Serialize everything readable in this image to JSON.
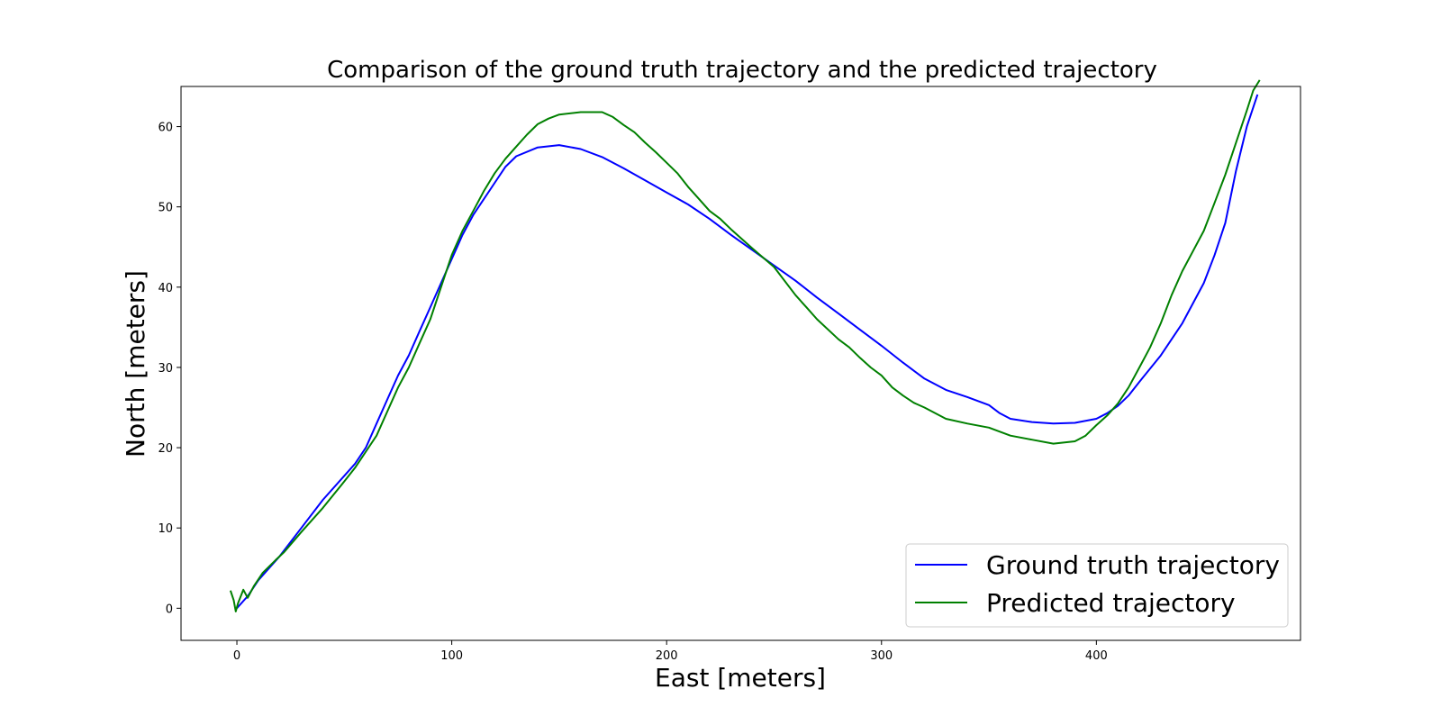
{
  "chart_data": {
    "type": "line",
    "title": "Comparison of the ground truth trajectory and the predicted trajectory",
    "xlabel": "East [meters]",
    "ylabel": "North [meters]",
    "xlim": [
      -26,
      495
    ],
    "ylim": [
      -4,
      65
    ],
    "x_ticks": [
      0,
      100,
      200,
      300,
      400
    ],
    "y_ticks": [
      0,
      10,
      20,
      30,
      40,
      50,
      60
    ],
    "grid": false,
    "legend_position": "lower right",
    "series": [
      {
        "name": "Ground truth trajectory",
        "color": "#0000ff",
        "points": [
          [
            0,
            0
          ],
          [
            5,
            1.5
          ],
          [
            10,
            3.5
          ],
          [
            20,
            6.5
          ],
          [
            30,
            10
          ],
          [
            40,
            13.5
          ],
          [
            50,
            16.5
          ],
          [
            55,
            18
          ],
          [
            60,
            20
          ],
          [
            65,
            23
          ],
          [
            70,
            26
          ],
          [
            75,
            29
          ],
          [
            80,
            31.5
          ],
          [
            85,
            34.5
          ],
          [
            90,
            37.5
          ],
          [
            95,
            40.5
          ],
          [
            100,
            43.5
          ],
          [
            105,
            46.5
          ],
          [
            110,
            49
          ],
          [
            115,
            51
          ],
          [
            120,
            53
          ],
          [
            125,
            55
          ],
          [
            130,
            56.3
          ],
          [
            140,
            57.4
          ],
          [
            150,
            57.7
          ],
          [
            160,
            57.2
          ],
          [
            170,
            56.2
          ],
          [
            180,
            54.8
          ],
          [
            190,
            53.3
          ],
          [
            200,
            51.8
          ],
          [
            210,
            50.3
          ],
          [
            220,
            48.5
          ],
          [
            230,
            46.5
          ],
          [
            240,
            44.6
          ],
          [
            250,
            42.7
          ],
          [
            260,
            40.8
          ],
          [
            270,
            38.7
          ],
          [
            280,
            36.7
          ],
          [
            290,
            34.7
          ],
          [
            300,
            32.7
          ],
          [
            310,
            30.6
          ],
          [
            320,
            28.6
          ],
          [
            330,
            27.2
          ],
          [
            340,
            26.3
          ],
          [
            350,
            25.3
          ],
          [
            355,
            24.3
          ],
          [
            360,
            23.6
          ],
          [
            370,
            23.2
          ],
          [
            380,
            23.0
          ],
          [
            390,
            23.1
          ],
          [
            400,
            23.6
          ],
          [
            405,
            24.3
          ],
          [
            410,
            25.2
          ],
          [
            415,
            26.5
          ],
          [
            420,
            28.2
          ],
          [
            430,
            31.5
          ],
          [
            440,
            35.5
          ],
          [
            450,
            40.5
          ],
          [
            455,
            44
          ],
          [
            460,
            48
          ],
          [
            465,
            54.5
          ],
          [
            470,
            60
          ],
          [
            475,
            64
          ]
        ]
      },
      {
        "name": "Predicted trajectory",
        "color": "#008000",
        "points": [
          [
            -3,
            2.2
          ],
          [
            -1.5,
            1.0
          ],
          [
            -0.5,
            -0.4
          ],
          [
            0.5,
            0.6
          ],
          [
            3,
            2.3
          ],
          [
            5,
            1.3
          ],
          [
            8,
            2.8
          ],
          [
            12,
            4.4
          ],
          [
            18,
            6
          ],
          [
            22,
            7
          ],
          [
            30,
            9.5
          ],
          [
            40,
            12.5
          ],
          [
            50,
            15.8
          ],
          [
            55,
            17.5
          ],
          [
            60,
            19.5
          ],
          [
            65,
            21.5
          ],
          [
            70,
            24.5
          ],
          [
            75,
            27.5
          ],
          [
            80,
            30
          ],
          [
            85,
            33
          ],
          [
            90,
            36
          ],
          [
            95,
            40
          ],
          [
            100,
            44
          ],
          [
            105,
            47
          ],
          [
            110,
            49.5
          ],
          [
            115,
            52
          ],
          [
            120,
            54.2
          ],
          [
            125,
            56
          ],
          [
            130,
            57.5
          ],
          [
            135,
            59
          ],
          [
            140,
            60.3
          ],
          [
            145,
            61
          ],
          [
            150,
            61.5
          ],
          [
            160,
            61.8
          ],
          [
            170,
            61.8
          ],
          [
            175,
            61.2
          ],
          [
            180,
            60.2
          ],
          [
            185,
            59.3
          ],
          [
            190,
            58
          ],
          [
            195,
            56.8
          ],
          [
            200,
            55.5
          ],
          [
            205,
            54.2
          ],
          [
            210,
            52.5
          ],
          [
            215,
            51
          ],
          [
            220,
            49.5
          ],
          [
            225,
            48.5
          ],
          [
            230,
            47.2
          ],
          [
            240,
            44.8
          ],
          [
            250,
            42.5
          ],
          [
            260,
            39
          ],
          [
            265,
            37.5
          ],
          [
            270,
            36
          ],
          [
            280,
            33.5
          ],
          [
            285,
            32.5
          ],
          [
            290,
            31.2
          ],
          [
            295,
            30
          ],
          [
            300,
            29
          ],
          [
            305,
            27.5
          ],
          [
            310,
            26.5
          ],
          [
            315,
            25.6
          ],
          [
            320,
            25
          ],
          [
            330,
            23.6
          ],
          [
            340,
            23
          ],
          [
            350,
            22.5
          ],
          [
            360,
            21.5
          ],
          [
            370,
            21
          ],
          [
            380,
            20.5
          ],
          [
            390,
            20.8
          ],
          [
            395,
            21.5
          ],
          [
            400,
            22.8
          ],
          [
            405,
            24
          ],
          [
            410,
            25.5
          ],
          [
            415,
            27.5
          ],
          [
            420,
            30
          ],
          [
            425,
            32.5
          ],
          [
            430,
            35.5
          ],
          [
            435,
            39
          ],
          [
            440,
            42
          ],
          [
            445,
            44.5
          ],
          [
            450,
            47
          ],
          [
            455,
            50.5
          ],
          [
            460,
            54
          ],
          [
            465,
            58
          ],
          [
            470,
            62
          ],
          [
            473,
            64.5
          ],
          [
            476,
            65.8
          ]
        ]
      }
    ]
  }
}
